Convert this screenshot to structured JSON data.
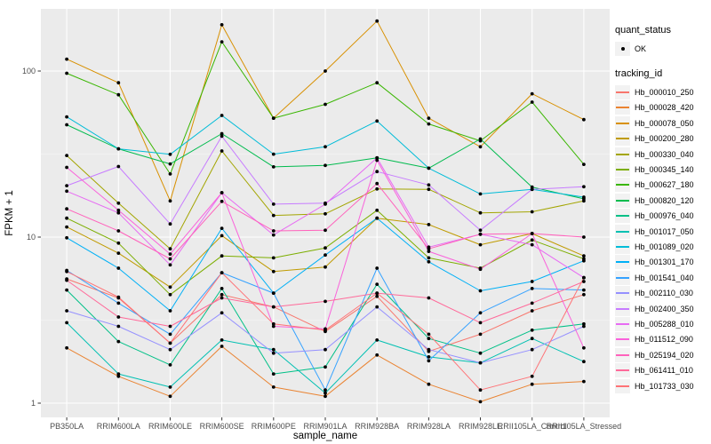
{
  "figure": {
    "panel_bg": "#EBEBEB",
    "grid_major_color": "#FFFFFF",
    "grid_minor_color": "#FFFFFF",
    "tick_color": "#333333",
    "tick_label_color": "#4D4D4D",
    "axis_title_color": "#000000",
    "point_color": "#000000",
    "legend_key_bg": "#F2F2F2"
  },
  "legend": {
    "quant_status_title": "quant_status",
    "quant_status_items": [
      {
        "label": "OK",
        "marker": "point-icon"
      }
    ],
    "tracking_title": "tracking_id"
  },
  "chart_data": {
    "type": "line",
    "title": "",
    "xlabel": "sample_name",
    "ylabel": "FPKM + 1",
    "y_scale": "log10",
    "y_ticks": [
      1,
      10,
      100
    ],
    "y_tick_labels": [
      "1",
      "10",
      "100"
    ],
    "y_minor_ticks": [
      3.1623,
      31.623
    ],
    "ylim": [
      1,
      230
    ],
    "legend_position": "right",
    "grid": true,
    "categories": [
      "PB350LA",
      "RRIM600LA",
      "RRIM600LE",
      "RRIM600SE",
      "RRIM600PE",
      "RRIM901LA",
      "RRIM928BA",
      "RRIM928LA",
      "RRIM928LE",
      "RRII105LA_Control",
      "RRII105LA_Stressed"
    ],
    "series": [
      {
        "name": "Hb_000010_250",
        "color": "#F8766D",
        "values": [
          5.6,
          4.3,
          2.3,
          4.5,
          3.8,
          2.7,
          4.4,
          2.05,
          2.6,
          3.6,
          4.5
        ]
      },
      {
        "name": "Hb_000028_420",
        "color": "#EA8331",
        "values": [
          2.15,
          1.45,
          1.1,
          2.2,
          1.25,
          1.1,
          1.95,
          1.3,
          1.02,
          1.3,
          1.35
        ]
      },
      {
        "name": "Hb_000078_050",
        "color": "#D89000",
        "values": [
          118,
          85,
          16.5,
          190,
          52,
          100,
          200,
          52,
          35,
          73,
          51
        ]
      },
      {
        "name": "Hb_000200_280",
        "color": "#C09B00",
        "values": [
          11.5,
          8.0,
          5.0,
          10.2,
          6.2,
          6.6,
          13,
          11.9,
          9.0,
          10.5,
          7.7
        ]
      },
      {
        "name": "Hb_000330_040",
        "color": "#A3A500",
        "values": [
          31,
          16,
          8.5,
          33,
          13.5,
          13.8,
          19.5,
          19.4,
          14,
          14.2,
          16.5
        ]
      },
      {
        "name": "Hb_000345_140",
        "color": "#7CAE00",
        "values": [
          13,
          9.2,
          4.5,
          7.7,
          7.5,
          8.6,
          14.5,
          7.5,
          6.5,
          9.6,
          7.4
        ]
      },
      {
        "name": "Hb_000627_180",
        "color": "#39B600",
        "values": [
          97,
          72,
          24,
          150,
          52,
          63,
          85,
          48,
          38,
          65,
          27.4
        ]
      },
      {
        "name": "Hb_000820_120",
        "color": "#00BB4E",
        "values": [
          47.5,
          34,
          27.6,
          42,
          26.5,
          27,
          30,
          26,
          39,
          20,
          17
        ]
      },
      {
        "name": "Hb_000976_040",
        "color": "#00C087",
        "values": [
          4.8,
          2.35,
          1.7,
          4.9,
          1.5,
          1.65,
          5.2,
          2.45,
          2.0,
          2.75,
          3.0
        ]
      },
      {
        "name": "Hb_001017_050",
        "color": "#00C0B2",
        "values": [
          3.05,
          1.5,
          1.25,
          2.4,
          2.1,
          1.15,
          2.4,
          1.9,
          1.75,
          2.45,
          1.78
        ]
      },
      {
        "name": "Hb_001089_020",
        "color": "#00BCD8",
        "values": [
          53,
          34,
          31.5,
          54,
          31.6,
          35,
          50,
          26,
          18.2,
          19.4,
          17.4
        ]
      },
      {
        "name": "Hb_001301_170",
        "color": "#00B0F6",
        "values": [
          9.9,
          6.5,
          3.6,
          11.3,
          4.6,
          7.8,
          13,
          7.1,
          4.75,
          5.4,
          7.2
        ]
      },
      {
        "name": "Hb_001541_040",
        "color": "#35A2FF",
        "values": [
          6.3,
          4.0,
          2.6,
          6.1,
          4.6,
          1.2,
          6.5,
          1.8,
          3.5,
          4.9,
          4.8
        ]
      },
      {
        "name": "Hb_002110_030",
        "color": "#9590FF",
        "values": [
          3.6,
          2.9,
          2.1,
          3.5,
          2.0,
          2.1,
          3.8,
          2.1,
          1.75,
          2.1,
          2.9
        ]
      },
      {
        "name": "Hb_002400_350",
        "color": "#C77CFF",
        "values": [
          20.4,
          26.6,
          12,
          40.5,
          15.8,
          16,
          24.8,
          20.6,
          11,
          19.4,
          20.1
        ]
      },
      {
        "name": "Hb_005288_010",
        "color": "#E76BF3",
        "values": [
          18.9,
          14,
          6.8,
          18.5,
          10.3,
          15.8,
          30,
          8.7,
          10.4,
          9.0,
          5.7
        ]
      },
      {
        "name": "Hb_011512_090",
        "color": "#FA62DB",
        "values": [
          26.3,
          14.5,
          7.9,
          18.5,
          2.9,
          2.8,
          29,
          8.2,
          6.4,
          10.5,
          2.15
        ]
      },
      {
        "name": "Hb_025194_020",
        "color": "#FF62BC",
        "values": [
          14.8,
          10.9,
          7.4,
          16.4,
          10.9,
          11,
          21,
          8.5,
          10.4,
          10.5,
          10
        ]
      },
      {
        "name": "Hb_061411_010",
        "color": "#FF6A9A",
        "values": [
          5.5,
          3.3,
          2.9,
          4.3,
          3.8,
          4.1,
          4.6,
          4.3,
          3.05,
          4.0,
          5.4
        ]
      },
      {
        "name": "Hb_101733_030",
        "color": "#FF7276",
        "values": [
          6.2,
          4.35,
          2.3,
          6.1,
          3.0,
          2.75,
          4.6,
          2.6,
          1.2,
          1.45,
          5.7
        ]
      }
    ]
  }
}
